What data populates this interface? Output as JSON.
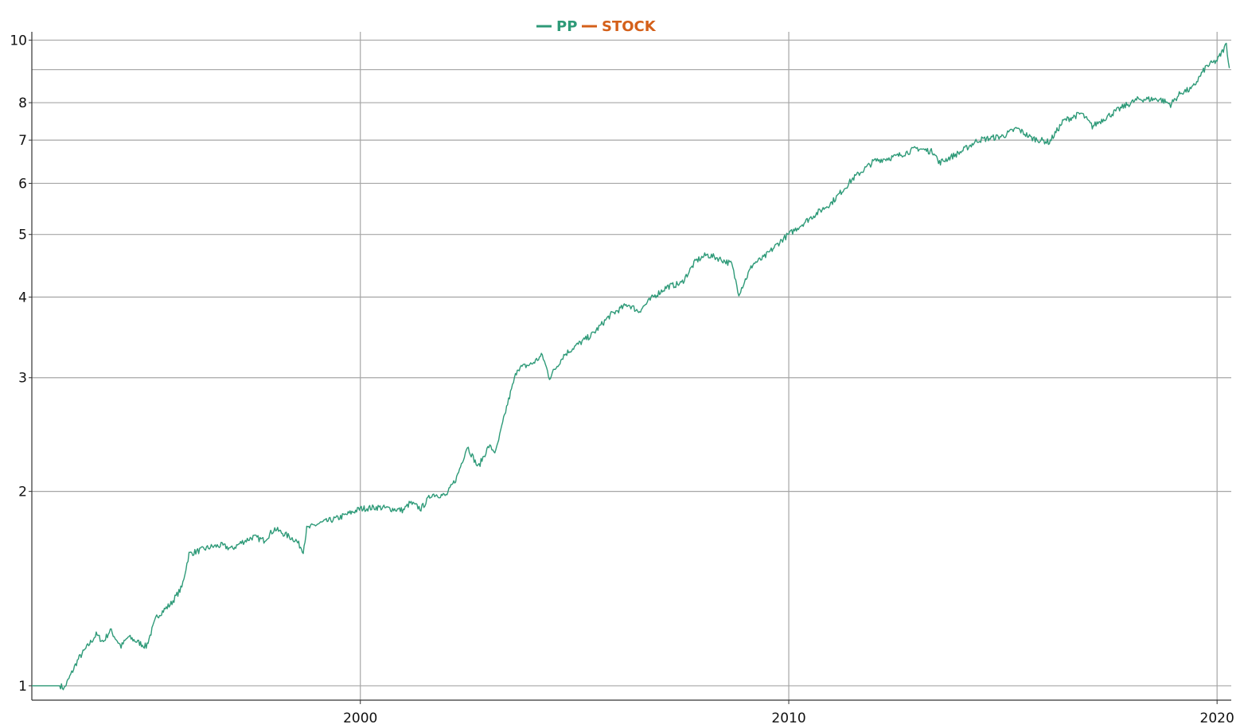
{
  "chart_data": {
    "type": "line",
    "title": "",
    "xlabel": "",
    "ylabel": "",
    "y_scale": "log",
    "ylim": [
      0.95,
      10.3
    ],
    "xlim": [
      "1992-05-01",
      "2020-05-01"
    ],
    "y_ticks": [
      "1",
      "2",
      "3",
      "4",
      "5",
      "6",
      "7",
      "8",
      "10"
    ],
    "y_gridlines": [
      1,
      2,
      3,
      4,
      5,
      6,
      7,
      8,
      9,
      10
    ],
    "x_ticks": [
      "2000",
      "2010",
      "2020"
    ],
    "x_gridlines": [
      "2000-01-01",
      "2010-01-01",
      "2020-01-01"
    ],
    "grid": true,
    "legend_position": "top-center",
    "series": [
      {
        "name": "PP",
        "color": "#2e9a78",
        "x": [
          "1992-05-01",
          "1993-01-01",
          "1993-02-01",
          "1993-06-01",
          "1993-11-01",
          "1994-01-01",
          "1994-03-01",
          "1994-06-01",
          "1994-08-01",
          "1995-01-01",
          "1995-04-01",
          "1995-08-01",
          "1995-11-01",
          "1996-01-01",
          "1996-04-01",
          "1996-07-01",
          "1996-10-01",
          "1997-01-01",
          "1997-04-01",
          "1997-07-01",
          "1997-10-01",
          "1998-01-01",
          "1998-07-01",
          "1998-09-01",
          "1998-10-01",
          "1999-01-01",
          "1999-07-01",
          "2000-01-01",
          "2000-06-01",
          "2001-01-01",
          "2001-03-01",
          "2001-06-01",
          "2001-09-01",
          "2002-01-01",
          "2002-04-01",
          "2002-07-01",
          "2002-10-01",
          "2003-01-01",
          "2003-03-01",
          "2003-06-01",
          "2003-09-01",
          "2004-01-01",
          "2004-04-01",
          "2004-06-01",
          "2004-10-01",
          "2005-01-01",
          "2005-06-01",
          "2005-11-01",
          "2006-04-01",
          "2006-07-01",
          "2006-11-01",
          "2007-03-01",
          "2007-07-01",
          "2007-11-01",
          "2008-02-01",
          "2008-05-01",
          "2008-09-01",
          "2008-11-01",
          "2009-03-01",
          "2009-06-01",
          "2009-11-01",
          "2010-01-01",
          "2010-07-01",
          "2011-01-01",
          "2011-07-01",
          "2012-01-01",
          "2012-07-01",
          "2013-01-01",
          "2013-06-01",
          "2013-07-01",
          "2014-01-01",
          "2014-06-01",
          "2015-01-01",
          "2015-05-01",
          "2015-09-01",
          "2016-02-01",
          "2016-06-01",
          "2016-11-01",
          "2017-02-01",
          "2017-06-01",
          "2017-11-01",
          "2018-03-01",
          "2018-09-01",
          "2018-12-01",
          "2019-03-01",
          "2019-06-01",
          "2019-10-01",
          "2020-01-01",
          "2020-02-15",
          "2020-03-20",
          "2020-04-15"
        ],
        "values": [
          1.0,
          1.0,
          0.99,
          1.1,
          1.2,
          1.17,
          1.22,
          1.15,
          1.19,
          1.15,
          1.28,
          1.34,
          1.42,
          1.6,
          1.62,
          1.64,
          1.65,
          1.63,
          1.67,
          1.7,
          1.68,
          1.75,
          1.68,
          1.62,
          1.75,
          1.78,
          1.82,
          1.88,
          1.89,
          1.87,
          1.92,
          1.88,
          1.98,
          1.97,
          2.1,
          2.35,
          2.18,
          2.35,
          2.3,
          2.7,
          3.1,
          3.15,
          3.25,
          3.0,
          3.25,
          3.35,
          3.5,
          3.75,
          3.9,
          3.8,
          4.0,
          4.15,
          4.2,
          4.55,
          4.65,
          4.6,
          4.5,
          4.05,
          4.5,
          4.6,
          4.9,
          5.0,
          5.3,
          5.6,
          6.1,
          6.5,
          6.6,
          6.8,
          6.7,
          6.45,
          6.7,
          7.0,
          7.1,
          7.3,
          7.05,
          6.95,
          7.5,
          7.7,
          7.35,
          7.6,
          7.9,
          8.1,
          8.1,
          7.95,
          8.3,
          8.4,
          9.1,
          9.3,
          9.6,
          9.85,
          9.05
        ]
      },
      {
        "name": "STOCK",
        "color": "#d4601a",
        "x": [],
        "values": []
      }
    ]
  }
}
